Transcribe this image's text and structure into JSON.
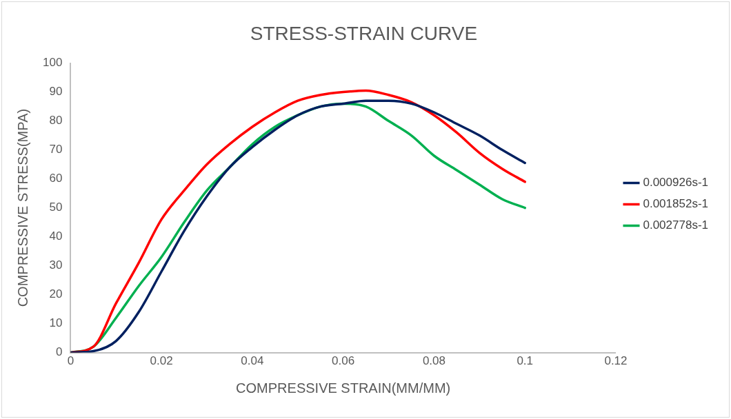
{
  "chart_data": {
    "type": "line",
    "title": "STRESS-STRAIN CURVE",
    "xlabel": "COMPRESSIVE STRAIN(MM/MM)",
    "ylabel": "COMPRESSIVE STRESS(MPA)",
    "x": [
      0,
      0.005,
      0.01,
      0.015,
      0.02,
      0.025,
      0.03,
      0.035,
      0.04,
      0.045,
      0.05,
      0.055,
      0.06,
      0.065,
      0.07,
      0.075,
      0.08,
      0.085,
      0.09,
      0.095,
      0.1
    ],
    "series": [
      {
        "name": "0.000926s-1",
        "color": "#002060",
        "values": [
          0,
          0.5,
          4,
          14,
          28,
          42,
          54,
          64,
          71,
          77,
          82,
          85,
          86,
          87,
          87,
          86,
          83,
          79,
          75,
          70,
          65.5
        ]
      },
      {
        "name": "0.001852s-1",
        "color": "#ff0000",
        "values": [
          0,
          2,
          17,
          31,
          46,
          56,
          65,
          72,
          78,
          83,
          87,
          89,
          90,
          90.5,
          89,
          86.5,
          82,
          76,
          69,
          63.5,
          59
        ]
      },
      {
        "name": "0.002778s-1",
        "color": "#00b050",
        "values": [
          0,
          2,
          12,
          23,
          33,
          45,
          56,
          64,
          72,
          78,
          82,
          85,
          86,
          85,
          80,
          75,
          68,
          63,
          58,
          53,
          50
        ]
      }
    ],
    "xlim": [
      0,
      0.12
    ],
    "xticks": [
      0,
      0.02,
      0.04,
      0.06,
      0.08,
      0.1,
      0.12
    ],
    "ylim": [
      0,
      100
    ],
    "yticks": [
      0,
      10,
      20,
      30,
      40,
      50,
      60,
      70,
      80,
      90,
      100
    ],
    "grid": false,
    "legend": "right",
    "marker": "none",
    "line_style": "solid"
  }
}
